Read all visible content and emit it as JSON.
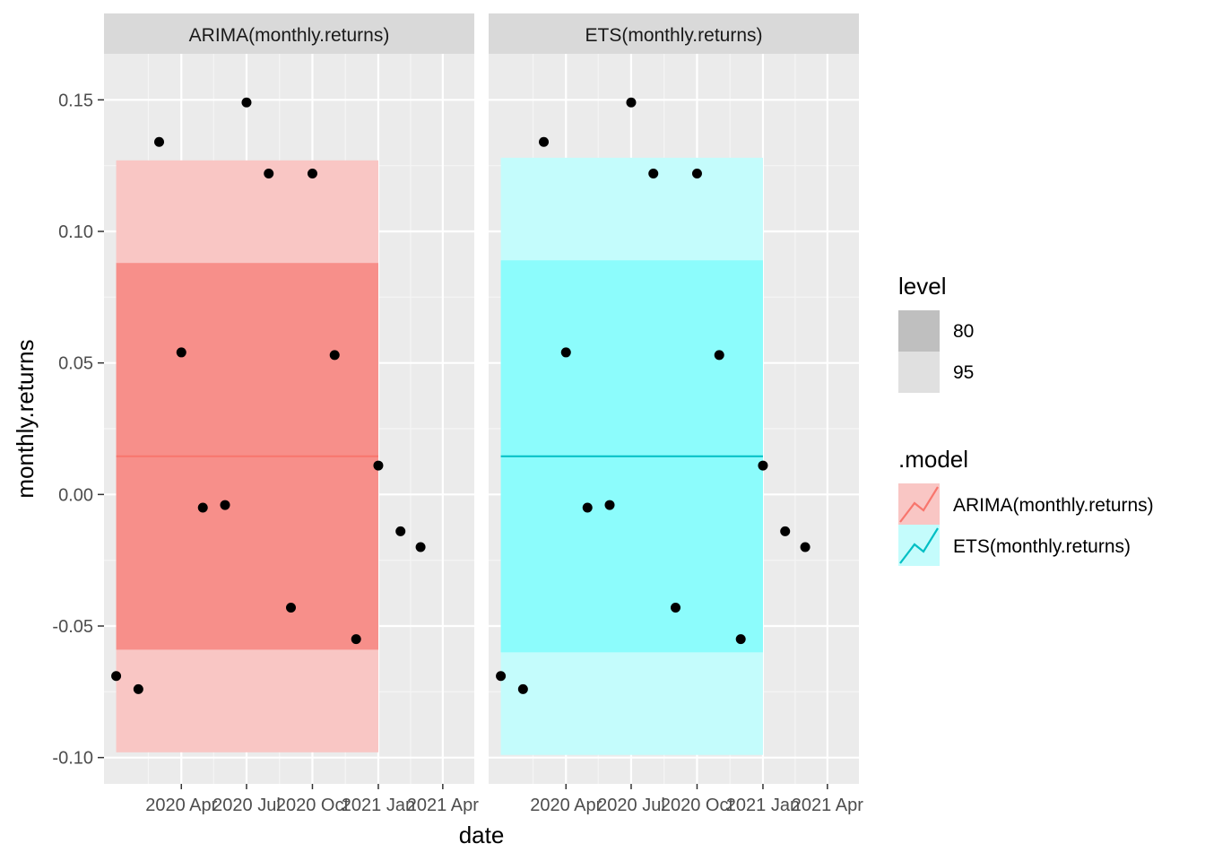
{
  "chart_data": {
    "type": "line",
    "subtype": "faceted forecast with prediction intervals and observed points",
    "xlabel": "date",
    "ylabel": "monthly.returns",
    "ylim": [
      -0.11,
      0.1675
    ],
    "yticks": [
      -0.1,
      -0.05,
      0.0,
      0.05,
      0.1,
      0.15
    ],
    "ytick_labels": [
      "-0.10",
      "-0.05",
      "0.00",
      "0.05",
      "0.10",
      "0.15"
    ],
    "xlim": [
      "2019-12-15",
      "2021-05-15"
    ],
    "xticks": [
      "2020-04-01",
      "2020-07-01",
      "2020-10-01",
      "2021-01-01",
      "2021-04-01"
    ],
    "xtick_labels": [
      "2020 Apr",
      "2020 Jul",
      "2020 Oct",
      "2021 Jan",
      "2021 Apr"
    ],
    "grid": true,
    "legend_position": "right",
    "observed": {
      "dates": [
        "2020-01-01",
        "2020-02-01",
        "2020-03-01",
        "2020-04-01",
        "2020-05-01",
        "2020-06-01",
        "2020-07-01",
        "2020-08-01",
        "2020-09-01",
        "2020-10-01",
        "2020-11-01",
        "2020-12-01",
        "2021-01-01",
        "2021-02-01",
        "2021-03-01",
        "2021-04-01"
      ],
      "values": [
        -0.069,
        -0.074,
        0.134,
        0.054,
        -0.005,
        -0.004,
        0.149,
        0.122,
        -0.043,
        0.122,
        0.053,
        -0.055,
        0.011,
        -0.014,
        -0.02,
        null
      ]
    },
    "facets": [
      {
        "strip": "ARIMA(monthly.returns)",
        "model": "ARIMA(monthly.returns)",
        "color": "#F8766D",
        "band95_color": "#F9C6C4",
        "band80_color": "#F78F8A",
        "forecast": {
          "start": "2020-01-01",
          "end": "2021-01-01",
          "mean": 0.0145
        },
        "interval_80": [
          -0.059,
          0.088
        ],
        "interval_95": [
          -0.098,
          0.127
        ]
      },
      {
        "strip": "ETS(monthly.returns)",
        "model": "ETS(monthly.returns)",
        "color": "#00BFC4",
        "band95_color": "#C4FCFC",
        "band80_color": "#8CFCFC",
        "forecast": {
          "start": "2020-01-01",
          "end": "2021-01-01",
          "mean": 0.0145
        },
        "interval_80": [
          -0.06,
          0.089
        ],
        "interval_95": [
          -0.099,
          0.128
        ]
      }
    ],
    "legends": {
      "level": {
        "title": "level",
        "entries": [
          {
            "label": "80",
            "color": "#BFBFBF"
          },
          {
            "label": "95",
            "color": "#E0E0E0"
          }
        ]
      },
      "model": {
        "title": ".model",
        "entries": [
          {
            "label": "ARIMA(monthly.returns)",
            "line_color": "#F8766D",
            "fill": "#F9C6C4"
          },
          {
            "label": "ETS(monthly.returns)",
            "line_color": "#00BFC4",
            "fill": "#C4FCFC"
          }
        ]
      }
    }
  }
}
